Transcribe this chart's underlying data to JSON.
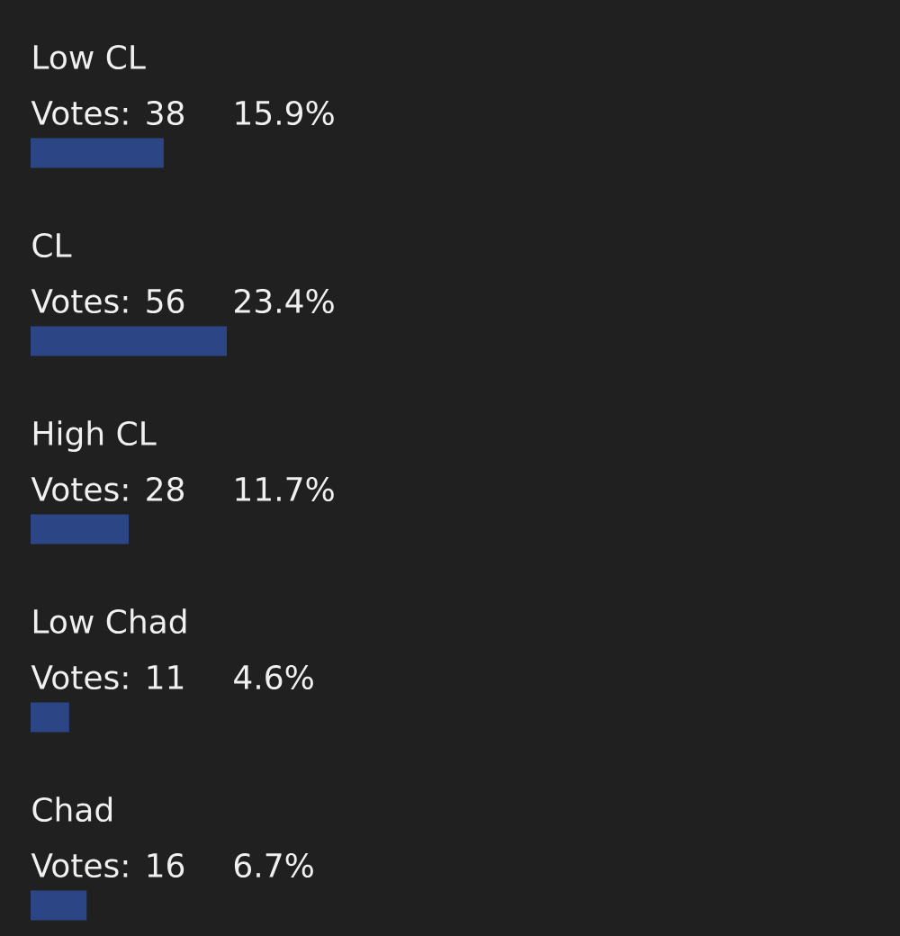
{
  "chart_data": {
    "type": "bar",
    "orientation": "horizontal",
    "categories": [
      "Low CL",
      "CL",
      "High CL",
      "Low Chad",
      "Chad"
    ],
    "values": [
      38,
      56,
      28,
      11,
      16
    ],
    "value_labels": [
      "Votes: 38",
      "Votes: 56",
      "Votes: 28",
      "Votes: 11",
      "Votes: 16"
    ],
    "color": "#2b4585",
    "annotations": [
      "15.9%",
      "23.4%",
      "11.7%",
      "4.6%",
      "6.7%"
    ]
  }
}
